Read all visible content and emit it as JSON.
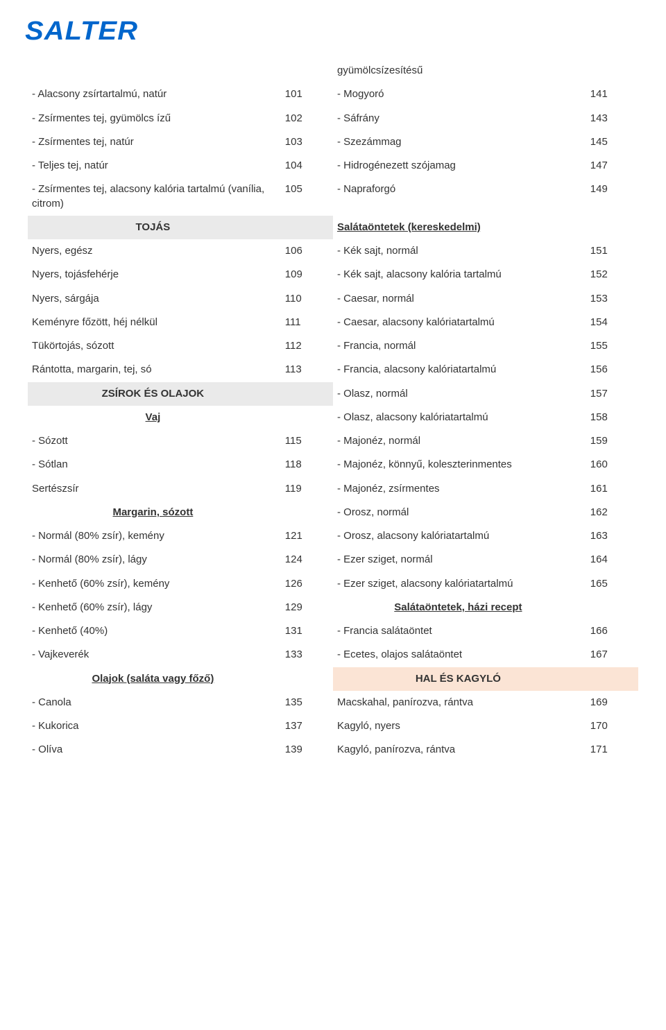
{
  "brand": "SALTER",
  "rows": [
    {
      "l": "",
      "ln": "",
      "r": "gyümölcsízesítésű",
      "rn": "",
      "style": {}
    },
    {
      "l": "- Alacsony zsírtartalmú, natúr",
      "ln": "101",
      "r": "- Mogyoró",
      "rn": "141",
      "style": {}
    },
    {
      "l": "- Zsírmentes tej, gyümölcs ízű",
      "ln": "102",
      "r": "- Sáfrány",
      "rn": "143",
      "style": {}
    },
    {
      "l": "- Zsírmentes tej, natúr",
      "ln": "103",
      "r": "- Szezámmag",
      "rn": "145",
      "style": {}
    },
    {
      "l": "- Teljes tej, natúr",
      "ln": "104",
      "r": "- Hidrogénezett szójamag",
      "rn": "147",
      "style": {}
    },
    {
      "l": "- Zsírmentes tej, alacsony kalória tartalmú (vanília, citrom)",
      "ln": "105",
      "r": "- Napraforgó",
      "rn": "149",
      "style": {}
    },
    {
      "l": "TOJÁS",
      "ln": "",
      "r": "Salátaöntetek (kereskedelmi)",
      "rn": "",
      "style": {
        "lcls": "hdr shade",
        "rcls": "hdr-u-left",
        "lnCls": "shade"
      }
    },
    {
      "l": "Nyers, egész",
      "ln": "106",
      "r": "- Kék sajt, normál",
      "rn": "151",
      "style": {}
    },
    {
      "l": "Nyers, tojásfehérje",
      "ln": "109",
      "r": "- Kék sajt, alacsony kalória tartalmú",
      "rn": "152",
      "style": {}
    },
    {
      "l": "Nyers, sárgája",
      "ln": "110",
      "r": "- Caesar, normál",
      "rn": "153",
      "style": {}
    },
    {
      "l": "Keményre főzött, héj nélkül",
      "ln": "111",
      "r": "- Caesar, alacsony kalóriatartalmú",
      "rn": "154",
      "style": {}
    },
    {
      "l": "Tükörtojás, sózott",
      "ln": "112",
      "r": "- Francia, normál",
      "rn": "155",
      "style": {}
    },
    {
      "l": "Rántotta, margarin, tej, só",
      "ln": "113",
      "r": "- Francia, alacsony kalóriatartalmú",
      "rn": "156",
      "style": {}
    },
    {
      "l": "ZSÍROK ÉS OLAJOK",
      "ln": "",
      "r": "- Olasz, normál",
      "rn": "157",
      "style": {
        "lcls": "hdr shade",
        "lnCls": "shade"
      }
    },
    {
      "l": "Vaj",
      "ln": "",
      "r": "- Olasz, alacsony kalóriatartalmú",
      "rn": "158",
      "style": {
        "lcls": "hdr-u"
      }
    },
    {
      "l": "- Sózott",
      "ln": "115",
      "r": "- Majonéz, normál",
      "rn": "159",
      "style": {}
    },
    {
      "l": "- Sótlan",
      "ln": "118",
      "r": "- Majonéz, könnyű, koleszterinmentes",
      "rn": "160",
      "style": {}
    },
    {
      "l": "Sertészsír",
      "ln": "119",
      "r": "- Majonéz, zsírmentes",
      "rn": "161",
      "style": {}
    },
    {
      "l": "Margarin, sózott",
      "ln": "",
      "r": "- Orosz, normál",
      "rn": "162",
      "style": {
        "lcls": "hdr-u"
      }
    },
    {
      "l": "- Normál (80% zsír), kemény",
      "ln": "121",
      "r": "- Orosz, alacsony kalóriatartalmú",
      "rn": "163",
      "style": {}
    },
    {
      "l": "- Normál (80% zsír), lágy",
      "ln": "124",
      "r": "- Ezer sziget, normál",
      "rn": "164",
      "style": {}
    },
    {
      "l": "- Kenhető (60% zsír), kemény",
      "ln": "126",
      "r": "- Ezer sziget, alacsony kalóriatartalmú",
      "rn": "165",
      "style": {}
    },
    {
      "l": "- Kenhető (60% zsír), lágy",
      "ln": "129",
      "r": "Salátaöntetek, házi recept",
      "rn": "",
      "style": {
        "rcls": "hdr-u"
      }
    },
    {
      "l": "- Kenhető (40%)",
      "ln": "131",
      "r": "- Francia salátaöntet",
      "rn": "166",
      "style": {}
    },
    {
      "l": "- Vajkeverék",
      "ln": "133",
      "r": "- Ecetes, olajos salátaöntet",
      "rn": "167",
      "style": {}
    },
    {
      "l": "Olajok (saláta vagy főző)",
      "ln": "",
      "r": "HAL ÉS KAGYLÓ",
      "rn": "",
      "style": {
        "lcls": "hdr-u",
        "rcls": "hdr orange",
        "rnCls": "orange"
      }
    },
    {
      "l": "- Canola",
      "ln": "135",
      "r": "Macskahal, panírozva, rántva",
      "rn": "169",
      "style": {}
    },
    {
      "l": "- Kukorica",
      "ln": "137",
      "r": "Kagyló, nyers",
      "rn": "170",
      "style": {}
    },
    {
      "l": "- Olíva",
      "ln": "139",
      "r": "Kagyló, panírozva, rántva",
      "rn": "171",
      "style": {}
    }
  ]
}
